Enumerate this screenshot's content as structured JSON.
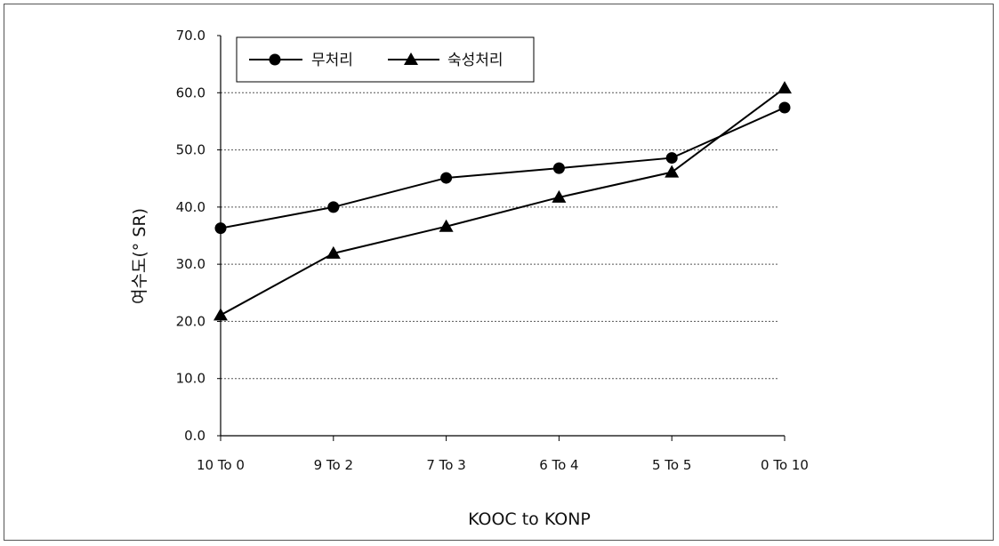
{
  "chart_data": {
    "type": "line",
    "xlabel": "KOOC to KONP",
    "ylabel": "여수도(° SR)",
    "categories": [
      "10 To 0",
      "9 To 2",
      "7 To 3",
      "6 To 4",
      "5 To 5",
      "0 To 10"
    ],
    "ylim": [
      0,
      70
    ],
    "yticks": [
      "0.0",
      "10.0",
      "20.0",
      "30.0",
      "40.0",
      "50.0",
      "60.0",
      "70.0"
    ],
    "grid": true,
    "legend_position": "top-left",
    "series": [
      {
        "name": "무처리",
        "marker": "circle",
        "values": [
          36.3,
          40.0,
          45.1,
          46.8,
          48.6,
          57.4
        ]
      },
      {
        "name": "숙성처리",
        "marker": "triangle",
        "values": [
          21.1,
          31.9,
          36.6,
          41.7,
          46.1,
          60.8
        ]
      }
    ],
    "colors": {
      "line": "#000000",
      "grid": "#555555"
    }
  }
}
